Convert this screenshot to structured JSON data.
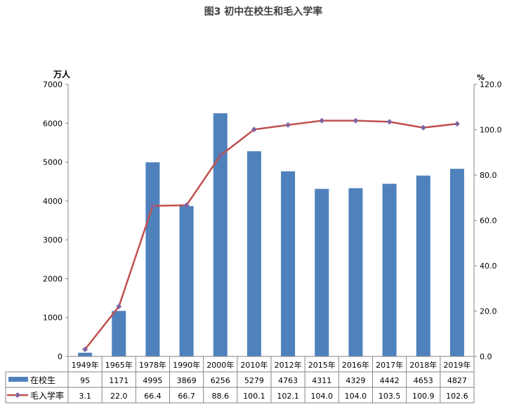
{
  "chart_data": {
    "type": "bar",
    "title": "图3 初中在校生和毛入学率",
    "ylabel": "万人",
    "y2label": "%",
    "ylim": [
      0,
      7000
    ],
    "y2lim": [
      0,
      120
    ],
    "yticks": [
      "0",
      "1000",
      "2000",
      "3000",
      "4000",
      "5000",
      "6000",
      "7000"
    ],
    "y2ticks": [
      "0.0",
      "20.0",
      "40.0",
      "60.0",
      "80.0",
      "100.0",
      "120.0"
    ],
    "categories": [
      "1949年",
      "1965年",
      "1978年",
      "1990年",
      "2000年",
      "2010年",
      "2012年",
      "2015年",
      "2016年",
      "2017年",
      "2018年",
      "2019年"
    ],
    "series": [
      {
        "name": "在校生",
        "type": "bar",
        "axis": "left",
        "color": "#4F81BD",
        "values": [
          95,
          1171,
          4995,
          3869,
          6256,
          5279,
          4763,
          4311,
          4329,
          4442,
          4653,
          4827
        ],
        "labels": [
          "95",
          "1171",
          "4995",
          "3869",
          "6256",
          "5279",
          "4763",
          "4311",
          "4329",
          "4442",
          "4653",
          "4827"
        ]
      },
      {
        "name": "毛入学率",
        "type": "line",
        "axis": "right",
        "color": "#C0504D",
        "marker_color": "#8064A2",
        "values": [
          3.1,
          22.0,
          66.4,
          66.7,
          88.6,
          100.1,
          102.1,
          104.0,
          104.0,
          103.5,
          100.9,
          102.6
        ],
        "labels": [
          "3.1",
          "22.0",
          "66.4",
          "66.7",
          "88.6",
          "100.1",
          "102.1",
          "104.0",
          "104.0",
          "103.5",
          "100.9",
          "102.6"
        ]
      }
    ],
    "legend": "bottom-table"
  }
}
